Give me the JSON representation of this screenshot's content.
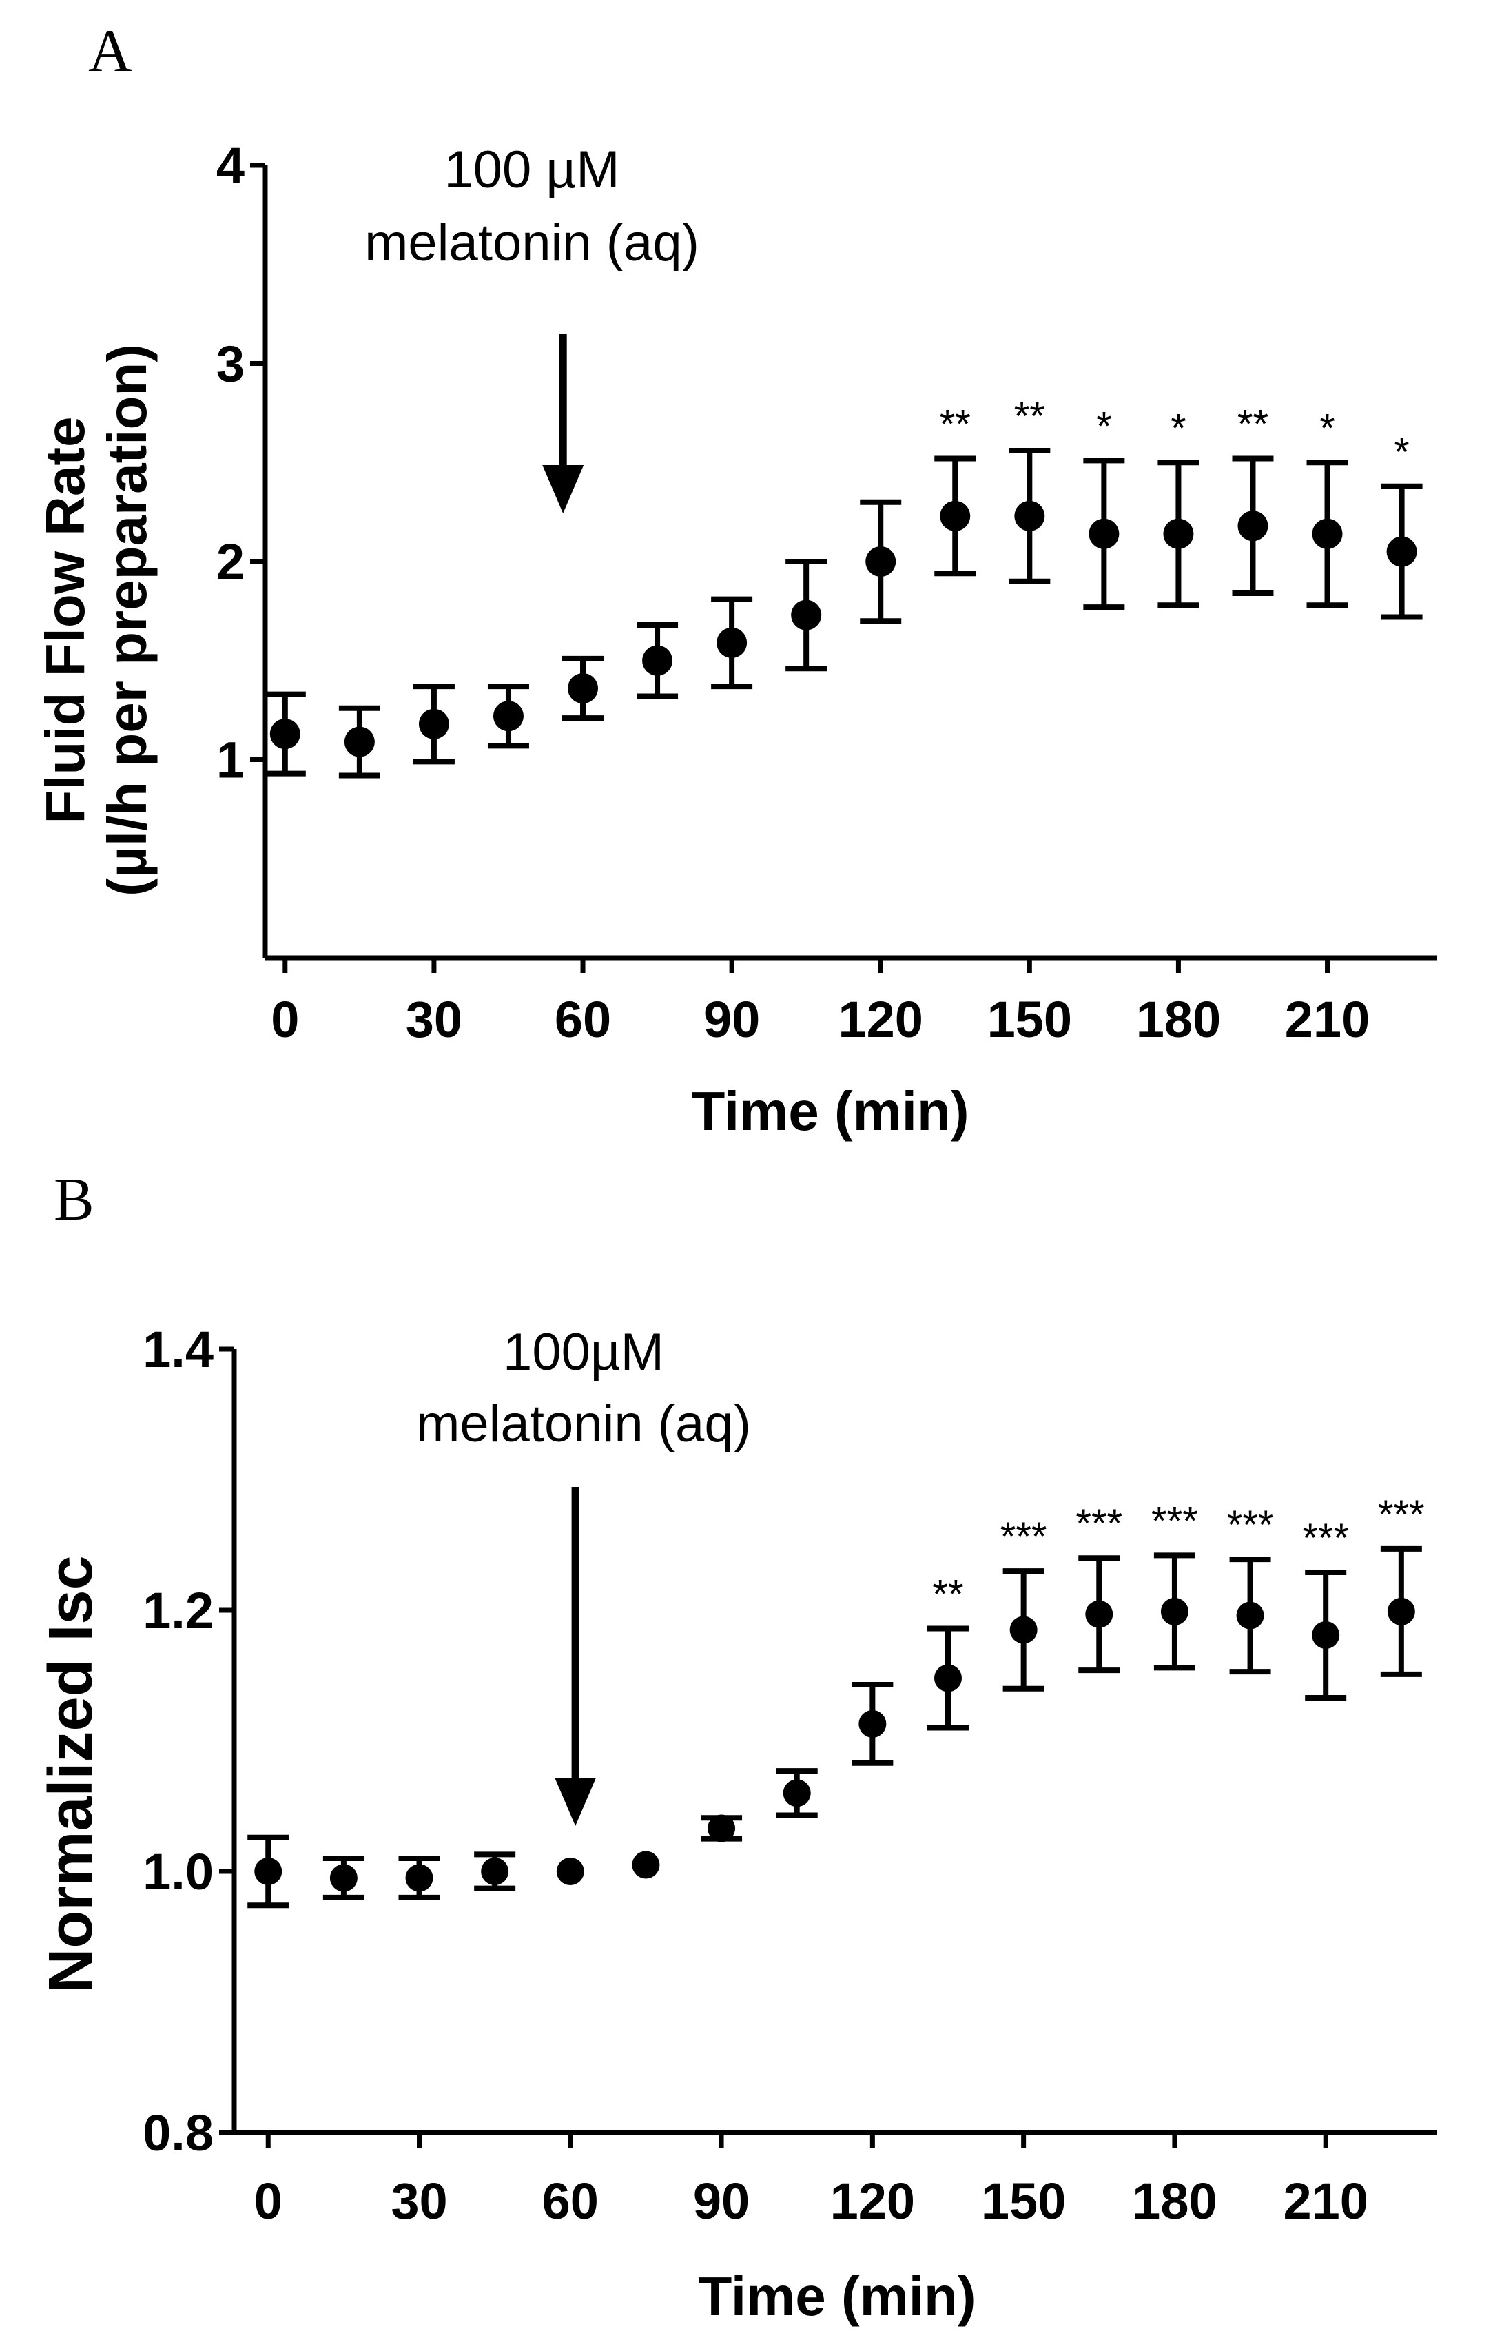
{
  "chart_data": [
    {
      "panel": "A",
      "type": "scatter",
      "xlabel": "Time (min)",
      "ylabel": "Fluid Flow Rate",
      "ylabel_units": "(µl/h per preparation)",
      "xlim": [
        -4,
        232
      ],
      "ylim": [
        0,
        4
      ],
      "xticks": [
        0,
        30,
        60,
        90,
        120,
        150,
        180,
        210
      ],
      "yticks": [
        1,
        2,
        3,
        4
      ],
      "annotation": {
        "line1": "100 µM",
        "line2": "melatonin (aq)",
        "arrow_x": 56
      },
      "points": [
        {
          "x": 0,
          "y": 1.13,
          "err": 0.2,
          "sig": ""
        },
        {
          "x": 15,
          "y": 1.09,
          "err": 0.17,
          "sig": ""
        },
        {
          "x": 30,
          "y": 1.18,
          "err": 0.19,
          "sig": ""
        },
        {
          "x": 45,
          "y": 1.22,
          "err": 0.15,
          "sig": ""
        },
        {
          "x": 60,
          "y": 1.36,
          "err": 0.15,
          "sig": ""
        },
        {
          "x": 75,
          "y": 1.5,
          "err": 0.18,
          "sig": ""
        },
        {
          "x": 90,
          "y": 1.59,
          "err": 0.22,
          "sig": ""
        },
        {
          "x": 105,
          "y": 1.73,
          "err": 0.27,
          "sig": ""
        },
        {
          "x": 120,
          "y": 2.0,
          "err": 0.3,
          "sig": ""
        },
        {
          "x": 135,
          "y": 2.23,
          "err": 0.29,
          "sig": "**"
        },
        {
          "x": 150,
          "y": 2.23,
          "err": 0.33,
          "sig": "**"
        },
        {
          "x": 165,
          "y": 2.14,
          "err": 0.37,
          "sig": "*"
        },
        {
          "x": 180,
          "y": 2.14,
          "err": 0.36,
          "sig": "*"
        },
        {
          "x": 195,
          "y": 2.18,
          "err": 0.34,
          "sig": "**"
        },
        {
          "x": 210,
          "y": 2.14,
          "err": 0.36,
          "sig": "*"
        },
        {
          "x": 225,
          "y": 2.05,
          "err": 0.33,
          "sig": "*"
        }
      ]
    },
    {
      "panel": "B",
      "type": "scatter",
      "xlabel": "Time (min)",
      "ylabel": "Normalized Isc",
      "xlim": [
        -4,
        232
      ],
      "ylim": [
        0.8,
        1.4
      ],
      "xticks": [
        0,
        30,
        60,
        90,
        120,
        150,
        180,
        210
      ],
      "yticks": [
        "0.8",
        "1.0",
        "1.2",
        "1.4"
      ],
      "annotation": {
        "line1": "100µM",
        "line2": "melatonin (aq)",
        "arrow_x": 61
      },
      "points": [
        {
          "x": 0,
          "y": 1.0,
          "err": 0.026,
          "sig": ""
        },
        {
          "x": 15,
          "y": 0.995,
          "err": 0.015,
          "sig": ""
        },
        {
          "x": 30,
          "y": 0.995,
          "err": 0.015,
          "sig": ""
        },
        {
          "x": 45,
          "y": 1.0,
          "err": 0.013,
          "sig": ""
        },
        {
          "x": 60,
          "y": 1.0,
          "err": 0.0,
          "sig": ""
        },
        {
          "x": 75,
          "y": 1.005,
          "err": 0.0,
          "sig": ""
        },
        {
          "x": 90,
          "y": 1.033,
          "err": 0.008,
          "sig": ""
        },
        {
          "x": 105,
          "y": 1.06,
          "err": 0.017,
          "sig": ""
        },
        {
          "x": 120,
          "y": 1.113,
          "err": 0.03,
          "sig": ""
        },
        {
          "x": 135,
          "y": 1.148,
          "err": 0.038,
          "sig": "**"
        },
        {
          "x": 150,
          "y": 1.185,
          "err": 0.045,
          "sig": "***"
        },
        {
          "x": 165,
          "y": 1.197,
          "err": 0.043,
          "sig": "***"
        },
        {
          "x": 180,
          "y": 1.199,
          "err": 0.043,
          "sig": "***"
        },
        {
          "x": 195,
          "y": 1.196,
          "err": 0.043,
          "sig": "***"
        },
        {
          "x": 210,
          "y": 1.181,
          "err": 0.048,
          "sig": "***"
        },
        {
          "x": 225,
          "y": 1.199,
          "err": 0.048,
          "sig": "***"
        }
      ]
    }
  ]
}
